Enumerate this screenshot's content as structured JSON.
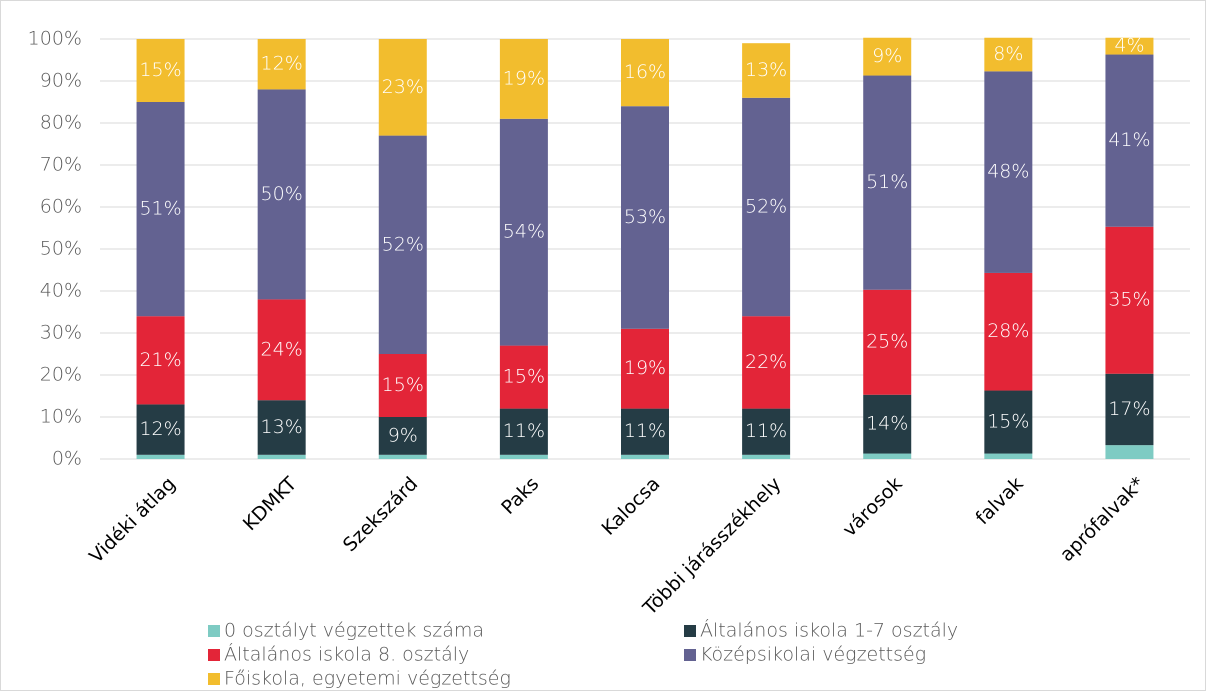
{
  "chart_data": {
    "type": "stacked_bar",
    "categories": [
      "Vidéki átlag",
      "KDMKT",
      "Szekszárd",
      "Paks",
      "Kalocsa",
      "Többi járásszékhely",
      "városok",
      "falvak",
      "aprófalvak*"
    ],
    "series": [
      {
        "name": "0 osztályt végzettek száma",
        "color": "#7ecbc3",
        "values": [
          1,
          1,
          1,
          1,
          1,
          1,
          1.3,
          1.3,
          3.3
        ]
      },
      {
        "name": "Általános iskola 1-7 osztály",
        "color": "#253c45",
        "values": [
          12,
          13,
          9,
          11,
          11,
          11,
          14,
          15,
          17
        ],
        "value_labels": [
          "12%",
          "13%",
          "9%",
          "11%",
          "11%",
          "11%",
          "14%",
          "15%",
          "17%"
        ]
      },
      {
        "name": "Általános iskola 8. osztály",
        "color": "#e32538",
        "values": [
          21,
          24,
          15,
          15,
          19,
          22,
          25,
          28,
          35
        ],
        "value_labels": [
          "21%",
          "24%",
          "15%",
          "15%",
          "19%",
          "22%",
          "25%",
          "28%",
          "35%"
        ]
      },
      {
        "name": "Középsikolai végzettség",
        "color": "#636291",
        "values": [
          51,
          50,
          52,
          54,
          53,
          52,
          51,
          48,
          41
        ],
        "value_labels": [
          "51%",
          "50%",
          "52%",
          "54%",
          "53%",
          "52%",
          "51%",
          "48%",
          "41%"
        ]
      },
      {
        "name": "Főiskola, egyetemi végzettség",
        "color": "#f2bd2e",
        "values": [
          15,
          12,
          23,
          19,
          16,
          13,
          9,
          8,
          4
        ],
        "value_labels": [
          "15%",
          "12%",
          "23%",
          "19%",
          "16%",
          "13%",
          "9%",
          "8%",
          "4%"
        ]
      }
    ],
    "ylim": [
      0,
      100
    ],
    "yticks": [
      {
        "value": 0,
        "label": "0%"
      },
      {
        "value": 10,
        "label": "10%"
      },
      {
        "value": 20,
        "label": "20%"
      },
      {
        "value": 30,
        "label": "30%"
      },
      {
        "value": 40,
        "label": "40%"
      },
      {
        "value": 50,
        "label": "50%"
      },
      {
        "value": 60,
        "label": "60%"
      },
      {
        "value": 70,
        "label": "70%"
      },
      {
        "value": 80,
        "label": "80%"
      },
      {
        "value": 90,
        "label": "90%"
      },
      {
        "value": 100,
        "label": "100%"
      }
    ],
    "grid": true,
    "legend": "bottom"
  }
}
